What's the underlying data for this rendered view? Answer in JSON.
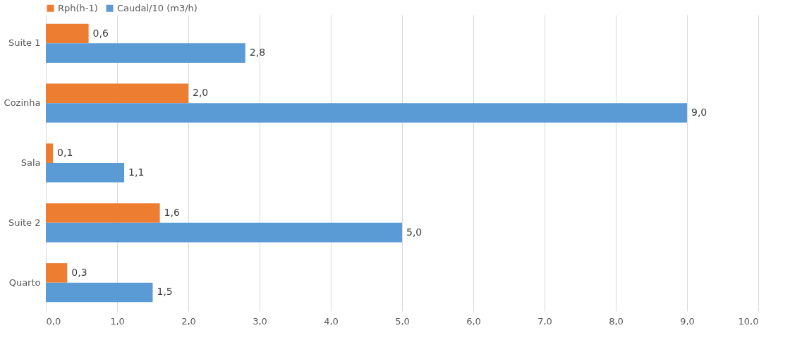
{
  "chart_data": {
    "type": "bar",
    "orientation": "horizontal",
    "categories": [
      "Suite 1",
      "Cozinha",
      "Sala",
      "Suite 2",
      "Quarto"
    ],
    "series": [
      {
        "name": "Rph(h-1)",
        "color": "#ed7d31",
        "values": [
          0.6,
          2.0,
          0.1,
          1.6,
          0.3
        ],
        "value_labels": [
          "0,6",
          "2,0",
          "0,1",
          "1,6",
          "0,3"
        ]
      },
      {
        "name": "Caudal/10 (m3/h)",
        "color": "#5b9bd5",
        "values": [
          2.8,
          9.0,
          1.1,
          5.0,
          1.5
        ],
        "value_labels": [
          "2,8",
          "9,0",
          "1,1",
          "5,0",
          "1,5"
        ]
      }
    ],
    "xlim": [
      0,
      10
    ],
    "xticks": [
      {
        "value": 0,
        "label": "0,0"
      },
      {
        "value": 1,
        "label": "1,0"
      },
      {
        "value": 2,
        "label": "2,0"
      },
      {
        "value": 3,
        "label": "3,0"
      },
      {
        "value": 4,
        "label": "4,0"
      },
      {
        "value": 5,
        "label": "5,0"
      },
      {
        "value": 6,
        "label": "6,0"
      },
      {
        "value": 7,
        "label": "7,0"
      },
      {
        "value": 8,
        "label": "8,0"
      },
      {
        "value": 9,
        "label": "9,0"
      },
      {
        "value": 10,
        "label": "10,0"
      }
    ],
    "grid": "x",
    "legend": "top"
  }
}
